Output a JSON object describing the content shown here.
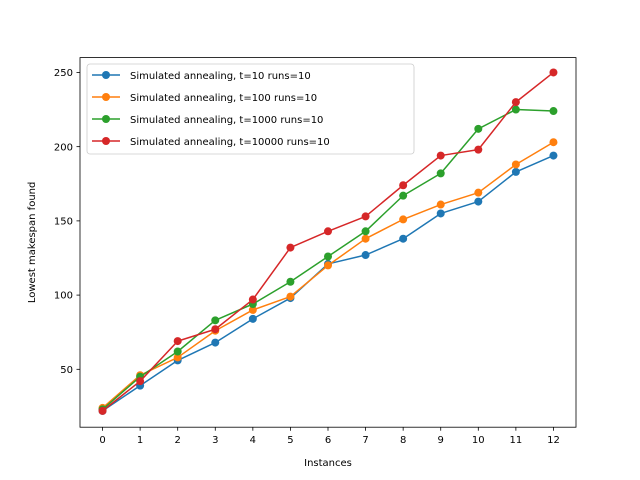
{
  "chart_data": {
    "type": "line",
    "title": "",
    "xlabel": "Instances",
    "ylabel": "Lowest makespan found",
    "x": [
      0,
      1,
      2,
      3,
      4,
      5,
      6,
      7,
      8,
      9,
      10,
      11,
      12
    ],
    "xlim": [
      -0.6,
      12.6
    ],
    "ylim": [
      11,
      260
    ],
    "xticks": [
      "0",
      "1",
      "2",
      "3",
      "4",
      "5",
      "6",
      "7",
      "8",
      "9",
      "10",
      "11",
      "12"
    ],
    "yticks": [
      "50",
      "100",
      "150",
      "200",
      "250"
    ],
    "grid": false,
    "legend_position": "top-left",
    "series": [
      {
        "name": "Simulated annealing, t=10 runs=10",
        "color": "#1f77b4",
        "values": [
          22,
          39,
          56,
          68,
          84,
          98,
          121,
          127,
          138,
          155,
          163,
          183,
          194
        ]
      },
      {
        "name": "Simulated annealing, t=100 runs=10",
        "color": "#ff7f0e",
        "values": [
          24,
          46,
          58,
          76,
          90,
          99,
          120,
          138,
          151,
          161,
          169,
          188,
          203
        ]
      },
      {
        "name": "Simulated annealing, t=1000 runs=10",
        "color": "#2ca02c",
        "values": [
          23,
          45,
          62,
          83,
          94,
          109,
          126,
          143,
          167,
          182,
          212,
          225,
          224
        ]
      },
      {
        "name": "Simulated annealing, t=10000 runs=10",
        "color": "#d62728",
        "values": [
          22,
          42,
          69,
          77,
          97,
          132,
          143,
          153,
          174,
          194,
          198,
          230,
          250
        ]
      }
    ]
  }
}
